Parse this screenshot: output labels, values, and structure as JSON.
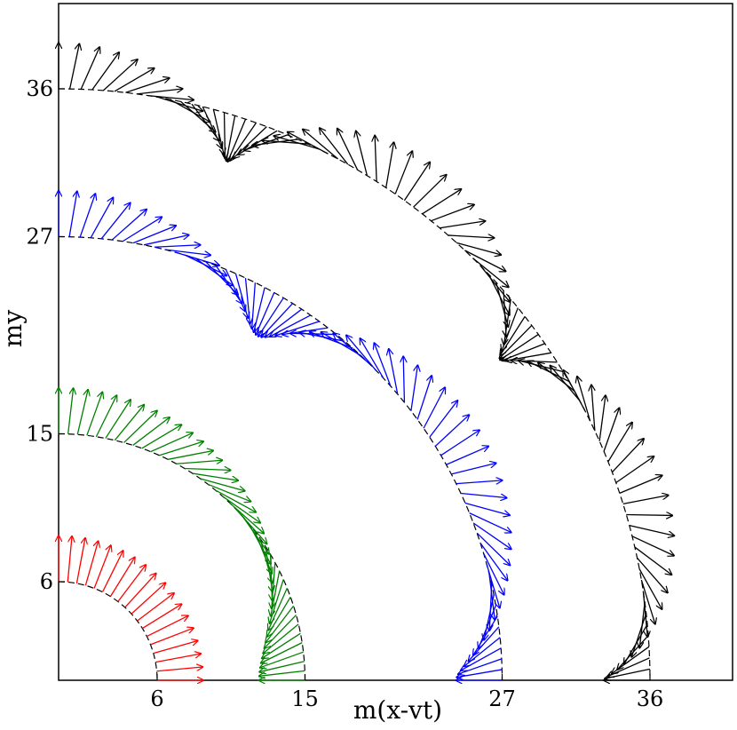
{
  "chart_data": {
    "type": "vector_field",
    "xlabel": "m(x-vt)",
    "ylabel": "my",
    "xlim": [
      0,
      41
    ],
    "ylim": [
      0,
      41
    ],
    "xticks": [
      6,
      15,
      27,
      36
    ],
    "yticks": [
      6,
      15,
      27,
      36
    ],
    "grid": false,
    "series": [
      {
        "radius": 6,
        "color": "#ff0000",
        "arrow_count": 18,
        "arrow_length": 2.8,
        "arrow_angle_deg": [
          90,
          0
        ]
      },
      {
        "radius": 15,
        "color": "#008000",
        "arrow_count": 42,
        "arrow_length": 2.8,
        "arrow_angle_deg": [
          90,
          0,
          -90,
          -180
        ]
      },
      {
        "radius": 27,
        "color": "#0000ff",
        "arrow_count": 66,
        "arrow_length": 2.8,
        "arrow_angle_deg": [
          90,
          0,
          -90,
          -180,
          -270,
          -360,
          -450,
          -540
        ]
      },
      {
        "radius": 36,
        "color": "#000000",
        "arrow_count": 84,
        "arrow_length": 2.8,
        "arrow_angle_deg": [
          90,
          0,
          -90,
          -180,
          -270,
          -360,
          -450,
          -540,
          -630,
          -720,
          -810,
          -900
        ]
      }
    ]
  }
}
